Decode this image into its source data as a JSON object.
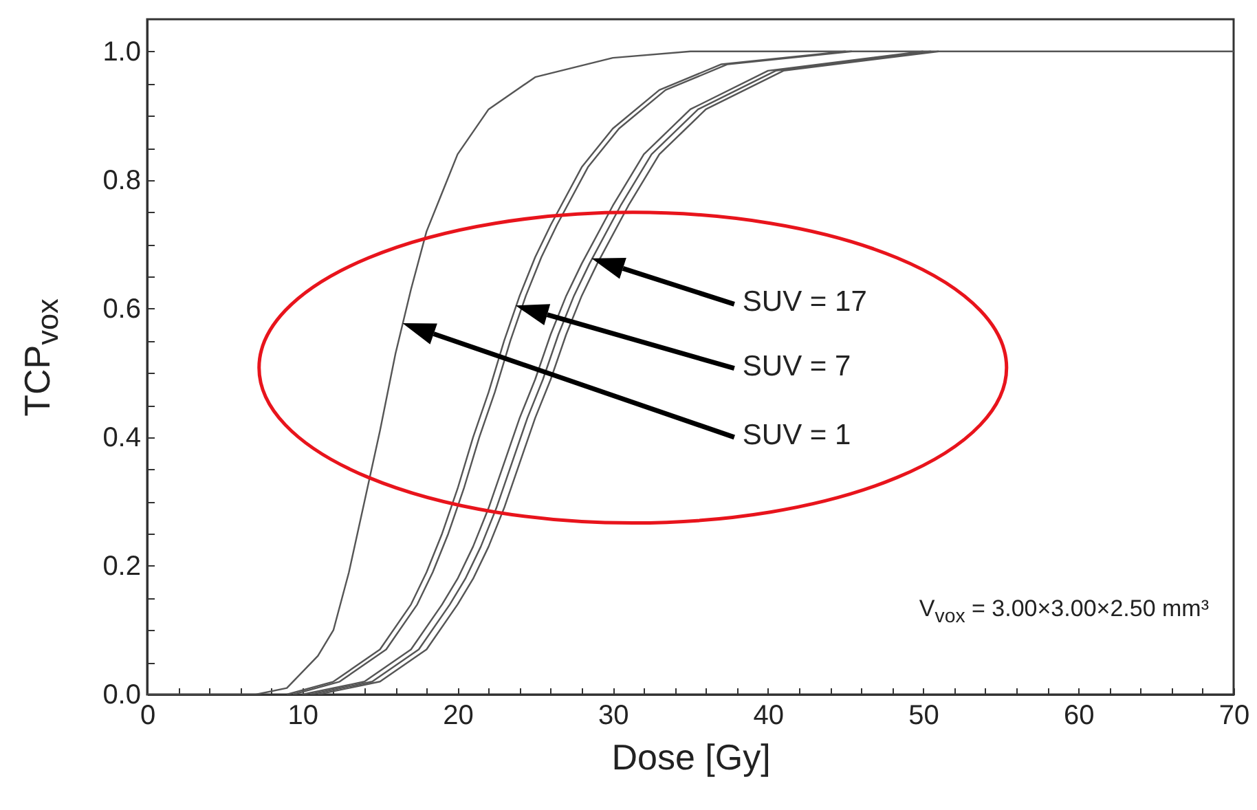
{
  "chart_data": {
    "type": "line",
    "xlabel": "Dose [Gy]",
    "ylabel": "TCP$_{vox}$",
    "xlim": [
      0,
      70
    ],
    "ylim": [
      0,
      1.05
    ],
    "xticks": [
      0,
      {
        "value": 2,
        "label": null
      },
      {
        "value": 4,
        "label": null
      },
      {
        "value": 6,
        "label": null
      },
      {
        "value": 8,
        "label": null
      },
      10,
      {
        "value": 12,
        "label": null
      },
      {
        "value": 14,
        "label": null
      },
      {
        "value": 16,
        "label": null
      },
      {
        "value": 18,
        "label": null
      },
      20,
      {
        "value": 22,
        "label": null
      },
      {
        "value": 24,
        "label": null
      },
      {
        "value": 26,
        "label": null
      },
      {
        "value": 28,
        "label": null
      },
      30,
      {
        "value": 32,
        "label": null
      },
      {
        "value": 34,
        "label": null
      },
      {
        "value": 36,
        "label": null
      },
      {
        "value": 38,
        "label": null
      },
      40,
      {
        "value": 42,
        "label": null
      },
      {
        "value": 44,
        "label": null
      },
      {
        "value": 46,
        "label": null
      },
      {
        "value": 48,
        "label": null
      },
      50,
      {
        "value": 52,
        "label": null
      },
      {
        "value": 54,
        "label": null
      },
      {
        "value": 56,
        "label": null
      },
      {
        "value": 58,
        "label": null
      },
      60,
      {
        "value": 62,
        "label": null
      },
      {
        "value": 64,
        "label": null
      },
      {
        "value": 66,
        "label": null
      },
      {
        "value": 68,
        "label": null
      },
      70
    ],
    "yticks": [
      {
        "value": 0,
        "label": "0.0"
      },
      {
        "value": 0.05,
        "label": null
      },
      {
        "value": 0.1,
        "label": null
      },
      {
        "value": 0.15,
        "label": null
      },
      {
        "value": 0.2,
        "label": "0.2"
      },
      {
        "value": 0.25,
        "label": null
      },
      {
        "value": 0.3,
        "label": null
      },
      {
        "value": 0.35,
        "label": null
      },
      {
        "value": 0.4,
        "label": "0.4"
      },
      {
        "value": 0.45,
        "label": null
      },
      {
        "value": 0.5,
        "label": null
      },
      {
        "value": 0.55,
        "label": null
      },
      {
        "value": 0.6,
        "label": "0.6"
      },
      {
        "value": 0.65,
        "label": null
      },
      {
        "value": 0.7,
        "label": null
      },
      {
        "value": 0.75,
        "label": null
      },
      {
        "value": 0.8,
        "label": "0.8"
      },
      {
        "value": 0.85,
        "label": null
      },
      {
        "value": 0.9,
        "label": null
      },
      {
        "value": 0.95,
        "label": null
      },
      {
        "value": 1.0,
        "label": "1.0"
      }
    ],
    "grid": false,
    "marker": "none",
    "line_style": "solid",
    "series": [
      {
        "color": "#555555",
        "x": [
          0,
          7,
          9,
          11,
          12,
          13,
          14,
          15,
          16,
          17,
          18,
          19,
          20,
          22,
          25,
          30,
          35,
          70
        ],
        "values": [
          0,
          0,
          0.01,
          0.06,
          0.1,
          0.19,
          0.3,
          0.41,
          0.53,
          0.63,
          0.72,
          0.78,
          0.84,
          0.91,
          0.96,
          0.99,
          1.0,
          1.0
        ]
      },
      {
        "color": "#555555",
        "x": [
          9,
          12,
          15,
          17,
          18,
          19,
          20,
          21,
          22,
          23,
          24,
          25,
          26,
          28,
          30,
          33,
          37,
          45
        ],
        "values": [
          0,
          0.02,
          0.07,
          0.14,
          0.19,
          0.25,
          0.32,
          0.4,
          0.47,
          0.55,
          0.62,
          0.68,
          0.73,
          0.82,
          0.88,
          0.94,
          0.98,
          1.0
        ]
      },
      {
        "color": "#555555",
        "x": [
          9.4,
          12.4,
          15.4,
          17.4,
          18.4,
          19.4,
          20.4,
          21.4,
          22.4,
          23.4,
          24.4,
          25.4,
          26.4,
          28.4,
          30.4,
          33.4,
          37.4,
          45.4
        ],
        "values": [
          0,
          0.02,
          0.07,
          0.14,
          0.19,
          0.25,
          0.32,
          0.4,
          0.47,
          0.55,
          0.62,
          0.68,
          0.73,
          0.82,
          0.88,
          0.94,
          0.98,
          1.0
        ]
      },
      {
        "color": "#555555",
        "x": [
          10,
          14,
          17,
          19,
          20,
          21,
          22,
          23,
          24,
          25,
          26,
          27,
          28,
          30,
          32,
          35,
          40,
          50
        ],
        "values": [
          0,
          0.02,
          0.07,
          0.14,
          0.18,
          0.23,
          0.29,
          0.36,
          0.43,
          0.49,
          0.56,
          0.62,
          0.67,
          0.76,
          0.84,
          0.91,
          0.97,
          1.0
        ]
      },
      {
        "color": "#555555",
        "x": [
          10.5,
          14.5,
          17.5,
          19.5,
          20.5,
          21.5,
          22.5,
          23.5,
          24.5,
          25.5,
          26.5,
          27.5,
          28.5,
          30.5,
          32.5,
          35.5,
          40.5,
          50.5
        ],
        "values": [
          0,
          0.02,
          0.07,
          0.14,
          0.18,
          0.23,
          0.29,
          0.36,
          0.43,
          0.49,
          0.56,
          0.62,
          0.67,
          0.76,
          0.84,
          0.91,
          0.97,
          1.0
        ]
      },
      {
        "color": "#555555",
        "x": [
          11,
          15,
          18,
          20,
          21,
          22,
          23,
          24,
          25,
          26,
          27,
          28,
          29,
          31,
          33,
          36,
          41,
          51
        ],
        "values": [
          0,
          0.02,
          0.07,
          0.14,
          0.18,
          0.23,
          0.29,
          0.36,
          0.43,
          0.49,
          0.56,
          0.62,
          0.67,
          0.76,
          0.84,
          0.91,
          0.97,
          1.0
        ]
      }
    ],
    "annotations": [
      "SUV = 17",
      "SUV = 7",
      "SUV = 1",
      "V$_{vox}$ = 3.00×3.00×2.50 mm³"
    ]
  }
}
